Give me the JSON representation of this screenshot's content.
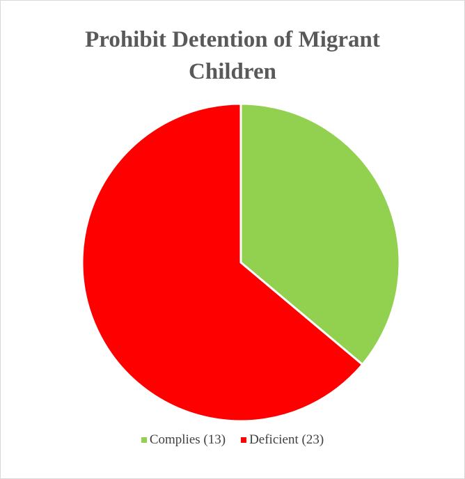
{
  "chart_data": {
    "type": "pie",
    "title_lines": [
      "Prohibit Detention of Migrant",
      "Children"
    ],
    "categories": [
      "Complies (13)",
      "Deficient (23)"
    ],
    "values": [
      13,
      23
    ],
    "colors": [
      "#92d050",
      "#ff0000"
    ],
    "legend_position": "bottom",
    "start_angle": "12 o'clock",
    "direction": "clockwise"
  }
}
